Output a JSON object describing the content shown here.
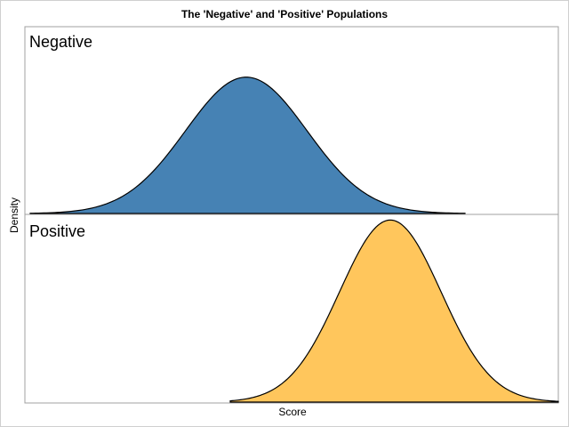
{
  "chart_data": {
    "type": "area",
    "title": "The 'Negative' and 'Positive' Populations",
    "xlabel": "Score",
    "ylabel": "Density",
    "xlim": [
      0,
      100
    ],
    "panels": [
      {
        "name": "Negative",
        "color": "#4682B4",
        "distribution": "normal",
        "mean": 41.5,
        "sd": 11.4,
        "x_range": [
          1,
          82.5
        ],
        "peak_fraction": 0.73
      },
      {
        "name": "Positive",
        "color": "#FFC65C",
        "distribution": "normal",
        "mean": 68.5,
        "sd": 9.5,
        "x_range": [
          38.5,
          100
        ],
        "peak_fraction": 0.97
      }
    ]
  }
}
